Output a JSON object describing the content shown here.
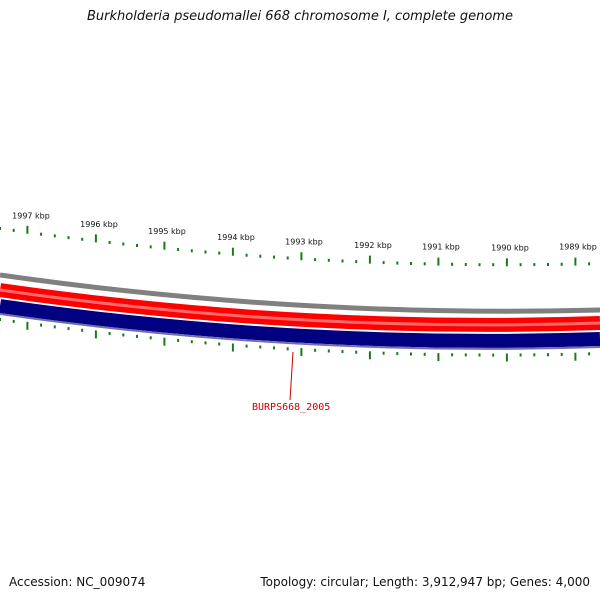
{
  "title": "Burkholderia pseudomallei 668 chromosome I, complete genome",
  "footer": {
    "accession": "Accession: NC_009074",
    "summary": "Topology: circular; Length: 3,912,947 bp; Genes: 4,000"
  },
  "scale_labels": [
    "1997 kbp",
    "1996 kbp",
    "1995 kbp",
    "1994 kbp",
    "1993 kbp",
    "1992 kbp",
    "1991 kbp",
    "1990 kbp",
    "1989 kbp"
  ],
  "highlighted_gene": "BURPS668_2005",
  "colors": {
    "outer_track": "#808080",
    "forward_strand": "#ff0000",
    "reverse_strand": "#000080",
    "ticks": "#1a7a1a",
    "gene_label": "#cc0000"
  }
}
